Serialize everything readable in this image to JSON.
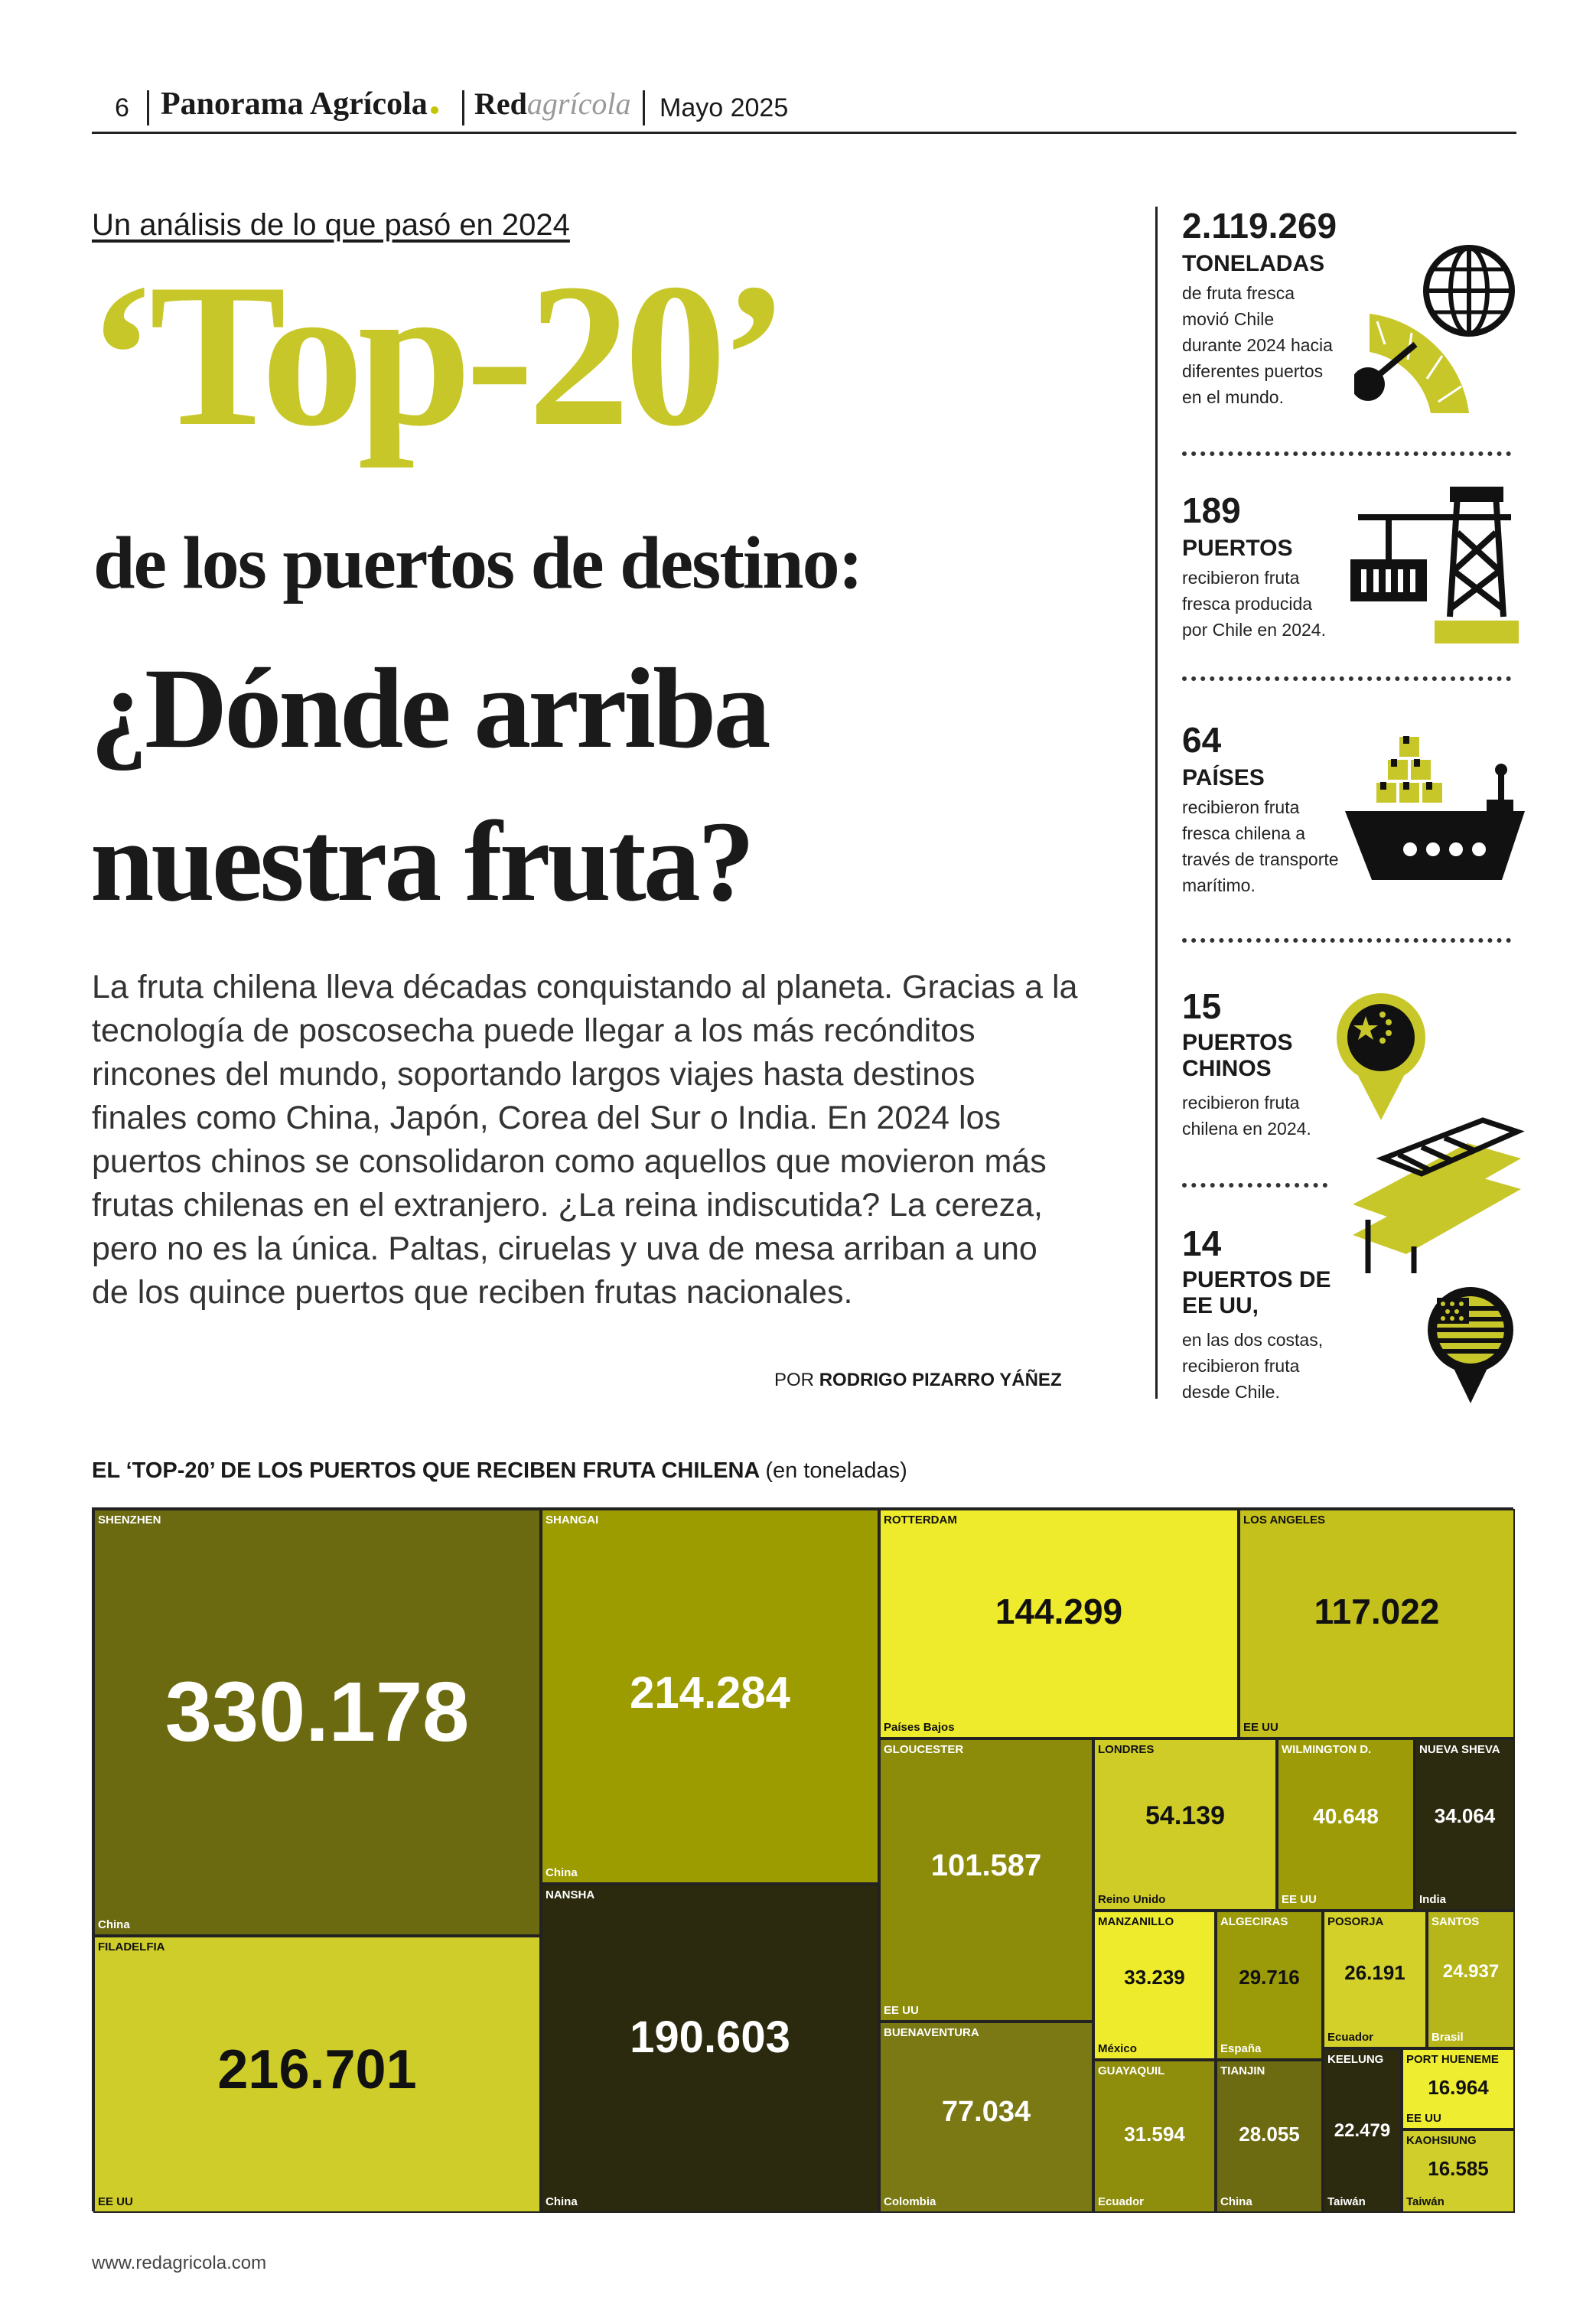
{
  "header": {
    "page_number": "6",
    "publication": "Panorama Agrícola",
    "brand_red": "Red",
    "brand_agricola": "agrícola",
    "date": "Mayo 2025"
  },
  "article": {
    "kicker": "Un análisis de lo que pasó en 2024",
    "title_top": "‘Top-20’",
    "title_sub": "de los puertos de destino:",
    "title_q1": "¿Dónde arriba",
    "title_q2": "nuestra fruta?",
    "lede": "La fruta chilena lleva décadas conquistando al planeta. Gracias a la tecnología de poscosecha puede llegar a los más recónditos rincones del mundo, soportando largos viajes hasta destinos finales como China, Japón, Corea del Sur o India. En 2024 los puertos chinos se consolidaron como aquellos que movieron más frutas chilenas en el extranjero. ¿La reina indiscutida? La cereza, pero no es la única. Paltas, ciruelas y uva de mesa arriban a uno de los quince puertos que reciben frutas nacionales.",
    "byline_prefix": "POR",
    "byline_name": "RODRIGO PIZARRO YÁÑEZ"
  },
  "stats": [
    {
      "number": "2.119.269",
      "label": "TONELADAS",
      "desc1": "de fruta fresca",
      "desc2": "movió Chile",
      "desc3": "durante 2024 hacia",
      "desc4": "diferentes puertos",
      "desc5": "en el mundo."
    },
    {
      "number": "189",
      "label": "PUERTOS",
      "desc1": "recibieron fruta",
      "desc2": "fresca producida",
      "desc3": "por Chile en 2024."
    },
    {
      "number": "64",
      "label": "PAÍSES",
      "desc1": "recibieron fruta",
      "desc2": "fresca chilena a",
      "desc3": "través de transporte",
      "desc4": "marítimo."
    },
    {
      "number": "15",
      "label1": "PUERTOS",
      "label2": "CHINOS",
      "desc1": "recibieron fruta",
      "desc2": "chilena en 2024."
    },
    {
      "number": "14",
      "label1": "PUERTOS DE",
      "label2": "EE UU,",
      "desc1": "en las dos costas,",
      "desc2": "recibieron fruta",
      "desc3": "desde Chile."
    }
  ],
  "chart_title": "EL ‘TOP-20’ DE LOS PUERTOS QUE RECIBEN FRUTA CHILENA",
  "chart_unit": "(en toneladas)",
  "chart_data": {
    "type": "treemap",
    "title": "EL ‘TOP-20’ DE LOS PUERTOS QUE RECIBEN FRUTA CHILENA (en toneladas)",
    "items": [
      {
        "port": "SHENZHEN",
        "country": "China",
        "value": 330178,
        "label": "330.178",
        "color": "#6b6a10"
      },
      {
        "port": "FILADELFIA",
        "country": "EE UU",
        "value": 216701,
        "label": "216.701",
        "color": "#cfcd2a"
      },
      {
        "port": "SHANGAI",
        "country": "China",
        "value": 214284,
        "label": "214.284",
        "color": "#9c9b00"
      },
      {
        "port": "NANSHA",
        "country": "China",
        "value": 190603,
        "label": "190.603",
        "color": "#2b2a0e"
      },
      {
        "port": "ROTTERDAM",
        "country": "Países Bajos",
        "value": 144299,
        "label": "144.299",
        "color": "#eeea2c"
      },
      {
        "port": "LOS ANGELES",
        "country": "EE UU",
        "value": 117022,
        "label": "117.022",
        "color": "#c4c11c"
      },
      {
        "port": "GLOUCESTER",
        "country": "EE UU",
        "value": 101587,
        "label": "101.587",
        "color": "#8c8b0a"
      },
      {
        "port": "BUENAVENTURA",
        "country": "Colombia",
        "value": 77034,
        "label": "77.034",
        "color": "#7a7913"
      },
      {
        "port": "LONDRES",
        "country": "Reino Unido",
        "value": 54139,
        "label": "54.139",
        "color": "#cfcc28"
      },
      {
        "port": "WILMINGTON D.",
        "country": "EE UU",
        "value": 40648,
        "label": "40.648",
        "color": "#9d9c08"
      },
      {
        "port": "NUEVA SHEVA",
        "country": "India",
        "value": 34064,
        "label": "34.064",
        "color": "#2d2b0f"
      },
      {
        "port": "MANZANILLO",
        "country": "México",
        "value": 33239,
        "label": "33.239",
        "color": "#eeeb2d"
      },
      {
        "port": "GUAYAQUIL",
        "country": "Ecuador",
        "value": 31594,
        "label": "31.594",
        "color": "#8f8d0c"
      },
      {
        "port": "ALGECIRAS",
        "country": "España",
        "value": 29716,
        "label": "29.716",
        "color": "#9b9a08"
      },
      {
        "port": "TIANJIN",
        "country": "China",
        "value": 28055,
        "label": "28.055",
        "color": "#6d6b12"
      },
      {
        "port": "POSORJA",
        "country": "Ecuador",
        "value": 26191,
        "label": "26.191",
        "color": "#d3d02a"
      },
      {
        "port": "SANTOS",
        "country": "Brasil",
        "value": 24937,
        "label": "24.937",
        "color": "#b6b51a"
      },
      {
        "port": "KEELUNG",
        "country": "Taiwán",
        "value": 22479,
        "label": "22.479",
        "color": "#2c2b10"
      },
      {
        "port": "PORT HUENEME",
        "country": "EE UU",
        "value": 16964,
        "label": "16.964",
        "color": "#efed30"
      },
      {
        "port": "KAOHSIUNG",
        "country": "Taiwán",
        "value": 16585,
        "label": "16.585",
        "color": "#d0ce2a"
      }
    ]
  },
  "footer": {
    "url": "www.redagricola.com"
  }
}
